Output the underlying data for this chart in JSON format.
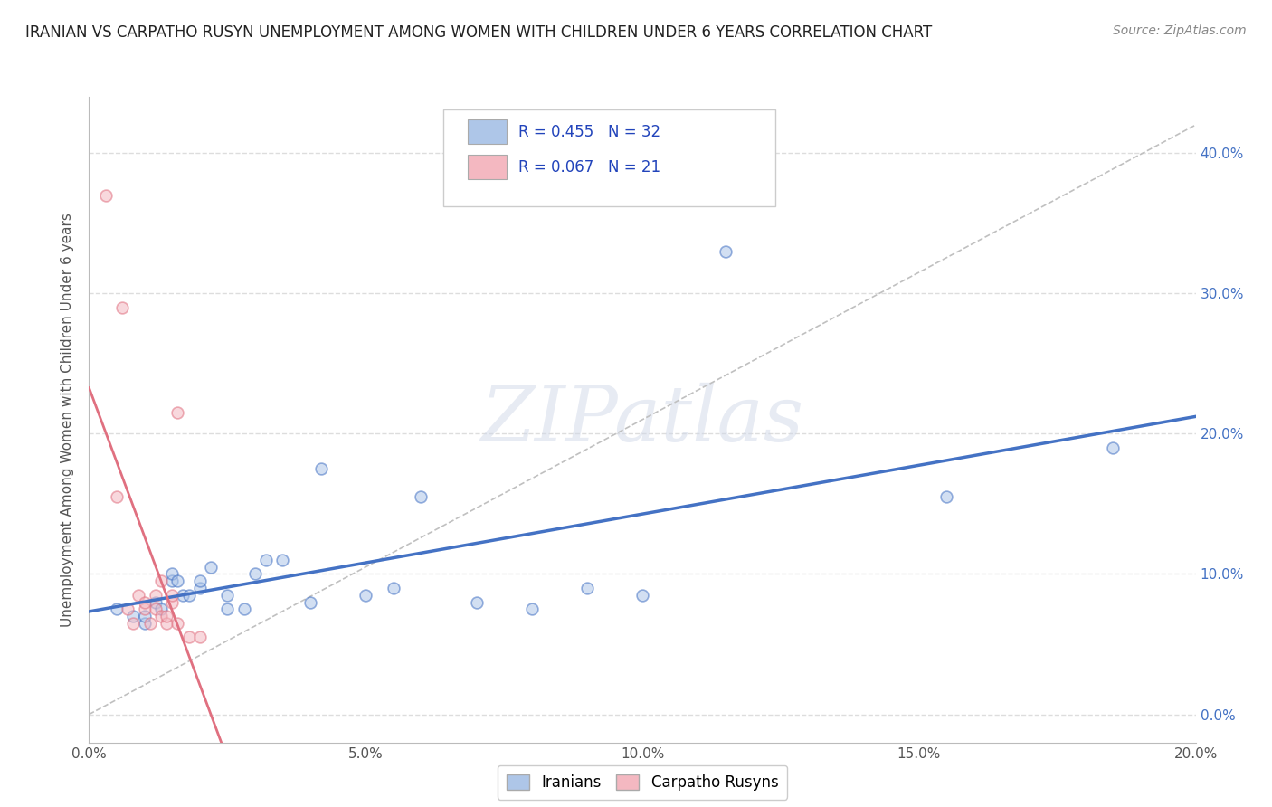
{
  "title": "IRANIAN VS CARPATHO RUSYN UNEMPLOYMENT AMONG WOMEN WITH CHILDREN UNDER 6 YEARS CORRELATION CHART",
  "source": "Source: ZipAtlas.com",
  "ylabel": "Unemployment Among Women with Children Under 6 years",
  "xlim": [
    0.0,
    0.2
  ],
  "ylim": [
    -0.02,
    0.44
  ],
  "xticks": [
    0.0,
    0.05,
    0.1,
    0.15,
    0.2
  ],
  "xtick_labels": [
    "0.0%",
    "5.0%",
    "10.0%",
    "15.0%",
    "20.0%"
  ],
  "yticks": [
    0.0,
    0.1,
    0.2,
    0.3,
    0.4
  ],
  "ytick_labels": [
    "0.0%",
    "10.0%",
    "20.0%",
    "30.0%",
    "40.0%"
  ],
  "legend_labels_bottom": [
    "Iranians",
    "Carpatho Rusyns"
  ],
  "iranians_x": [
    0.005,
    0.008,
    0.01,
    0.01,
    0.012,
    0.013,
    0.015,
    0.015,
    0.016,
    0.017,
    0.018,
    0.02,
    0.02,
    0.022,
    0.025,
    0.025,
    0.028,
    0.03,
    0.032,
    0.035,
    0.04,
    0.042,
    0.05,
    0.055,
    0.06,
    0.07,
    0.08,
    0.09,
    0.1,
    0.115,
    0.155,
    0.185
  ],
  "iranians_y": [
    0.075,
    0.07,
    0.065,
    0.07,
    0.08,
    0.075,
    0.095,
    0.1,
    0.095,
    0.085,
    0.085,
    0.09,
    0.095,
    0.105,
    0.075,
    0.085,
    0.075,
    0.1,
    0.11,
    0.11,
    0.08,
    0.175,
    0.085,
    0.09,
    0.155,
    0.08,
    0.075,
    0.09,
    0.085,
    0.33,
    0.155,
    0.19
  ],
  "carpatho_x": [
    0.003,
    0.005,
    0.006,
    0.007,
    0.008,
    0.009,
    0.01,
    0.01,
    0.011,
    0.012,
    0.012,
    0.013,
    0.013,
    0.014,
    0.014,
    0.015,
    0.015,
    0.016,
    0.016,
    0.018,
    0.02
  ],
  "carpatho_y": [
    0.37,
    0.155,
    0.29,
    0.075,
    0.065,
    0.085,
    0.075,
    0.08,
    0.065,
    0.075,
    0.085,
    0.07,
    0.095,
    0.065,
    0.07,
    0.08,
    0.085,
    0.065,
    0.215,
    0.055,
    0.055
  ],
  "background_color": "#ffffff",
  "grid_color": "#dddddd",
  "scatter_alpha": 0.55,
  "scatter_size": 85,
  "iranian_marker_color": "#aec6e8",
  "iranian_edge_color": "#4472c4",
  "carpatho_marker_color": "#f4b8c1",
  "carpatho_edge_color": "#e07080",
  "iranian_line_color": "#4472c4",
  "carpatho_line_color": "#e07080",
  "ref_line_color": "#c0c0c0",
  "watermark_text": "ZIPatlas",
  "r_iranians": 0.455,
  "r_carpatho": 0.067,
  "n_iranians": 32,
  "n_carpatho": 21
}
